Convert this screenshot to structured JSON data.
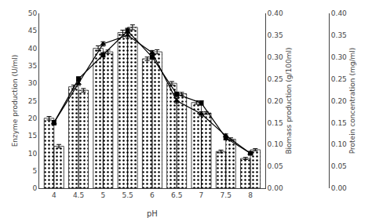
{
  "chart_data": {
    "type": "bar",
    "xlabel": "pH",
    "ylabel": "Enzyme production (U/ml)",
    "y2label": "Biomass production (g/100ml)",
    "y3label": "Protein concentration (mg/ml)",
    "categories": [
      "4",
      "4.5",
      "5",
      "5.5",
      "6",
      "6.5",
      "7",
      "7.5",
      "8"
    ],
    "series": [
      {
        "type": "bar",
        "color": "#ffffff",
        "values": [
          20.0,
          29.0,
          40.0,
          44.5,
          37.0,
          30.0,
          24.5,
          10.5,
          8.5
        ],
        "errors": [
          0.5,
          0.5,
          0.7,
          0.7,
          0.5,
          0.5,
          0.5,
          0.4,
          0.3
        ]
      },
      {
        "type": "bar",
        "color": "#aaaaaa",
        "values": [
          12.0,
          28.0,
          39.0,
          46.0,
          39.0,
          27.0,
          21.5,
          14.0,
          11.0
        ],
        "errors": [
          0.5,
          0.5,
          0.5,
          0.7,
          0.6,
          0.4,
          0.4,
          0.4,
          0.3
        ]
      },
      {
        "type": "line",
        "axis": "y2",
        "color": "#000000",
        "marker": "triangle-up",
        "values": [
          0.15,
          0.24,
          0.33,
          0.35,
          0.31,
          0.2,
          0.17,
          0.12,
          0.08
        ],
        "errors": [
          0.005,
          0.005,
          0.005,
          0.006,
          0.005,
          0.005,
          0.005,
          0.004,
          0.003
        ]
      },
      {
        "type": "line",
        "axis": "y3",
        "color": "#000000",
        "marker": "square",
        "values": [
          0.15,
          0.25,
          0.305,
          0.36,
          0.3,
          0.215,
          0.195,
          0.115,
          0.08
        ],
        "errors": [
          0.005,
          0.005,
          0.005,
          0.006,
          0.005,
          0.005,
          0.005,
          0.004,
          0.003
        ]
      }
    ],
    "ylim": [
      0,
      50
    ],
    "yticks": [
      0,
      5,
      10,
      15,
      20,
      25,
      30,
      35,
      40,
      45,
      50
    ],
    "y2lim": [
      0,
      0.4
    ],
    "y2ticks": [
      {
        "value": 0,
        "label": "0.00"
      },
      0.05,
      {
        "value": 0.1,
        "label": "0.10"
      },
      0.15,
      {
        "value": 0.2,
        "label": "0.20"
      },
      0.25,
      {
        "value": 0.3,
        "label": "0.30"
      },
      0.35,
      {
        "value": 0.4,
        "label": "0.40"
      }
    ],
    "y3lim": [
      0,
      0.4
    ],
    "y3ticks": [
      {
        "value": 0,
        "label": "0.00"
      },
      0.05,
      {
        "value": 0.1,
        "label": "0.10"
      },
      0.15,
      {
        "value": 0.2,
        "label": "0.20"
      },
      0.25,
      {
        "value": 0.3,
        "label": "0.30"
      },
      0.35,
      {
        "value": 0.4,
        "label": "0.40"
      }
    ],
    "grid": false
  }
}
